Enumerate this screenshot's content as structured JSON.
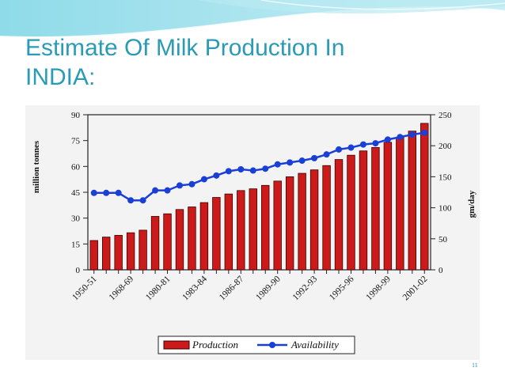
{
  "slide": {
    "title_line1": "Estimate Of Milk Production In",
    "title_line2": "INDIA:",
    "slide_number": "11"
  },
  "colors": {
    "title": "#2a9bb5",
    "bar_fill": "#cc1a1a",
    "bar_stroke": "#3a0000",
    "line": "#1a3fd6"
  },
  "chart_data": {
    "type": "bar",
    "title": "",
    "ylabel": "million tonnes",
    "y2label": "gm/day",
    "ylim": [
      0,
      90
    ],
    "y2lim": [
      0,
      250
    ],
    "yticks": [
      0,
      15,
      30,
      45,
      60,
      75,
      90
    ],
    "y2ticks": [
      0,
      50,
      100,
      150,
      200,
      250
    ],
    "grid": false,
    "legend_position": "bottom",
    "tick_labels": [
      "1950-51",
      "1968-69",
      "1980-81",
      "1983-84",
      "1986-87",
      "1989-90",
      "1992-93",
      "1995-96",
      "1998-99",
      "2001-02"
    ],
    "series": [
      {
        "name": "Production",
        "type": "bar",
        "axis": "left",
        "values": [
          17,
          19,
          20,
          21.5,
          23,
          31,
          32.5,
          35,
          36.5,
          39,
          42,
          44,
          46,
          47,
          49,
          51.5,
          54,
          56,
          58,
          60.5,
          64,
          66.5,
          69,
          71,
          74,
          77,
          80.5,
          85
        ]
      },
      {
        "name": "Availability",
        "type": "line",
        "axis": "right",
        "values": [
          124,
          124,
          124,
          112,
          112,
          128,
          128,
          136,
          138,
          146,
          152,
          159,
          162,
          160,
          163,
          170,
          173,
          176,
          180,
          186,
          194,
          197,
          202,
          204,
          210,
          214,
          218,
          221
        ]
      }
    ]
  }
}
